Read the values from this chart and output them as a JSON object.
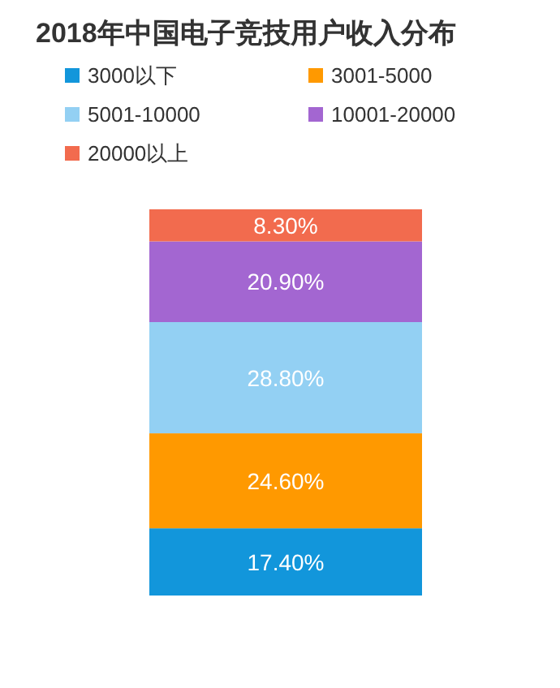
{
  "chart_data": {
    "type": "bar",
    "title": "2018年中国电子竞技用户收入分布",
    "categories": [
      null
    ],
    "stacked": true,
    "legend": "top",
    "series": [
      {
        "name": "3000以下",
        "color": "#1296db",
        "values": [
          17.4
        ],
        "value_labels": [
          "17.40%"
        ]
      },
      {
        "name": "3001-5000",
        "color": "#ff9900",
        "values": [
          24.6
        ],
        "value_labels": [
          "24.60%"
        ]
      },
      {
        "name": "5001-10000",
        "color": "#93d0f3",
        "values": [
          28.8
        ],
        "value_labels": [
          "28.80%"
        ]
      },
      {
        "name": "10001-20000",
        "color": "#a366d1",
        "values": [
          20.9
        ],
        "value_labels": [
          "20.90%"
        ]
      },
      {
        "name": "20000以上",
        "color": "#f26b4e",
        "values": [
          8.3
        ],
        "value_labels": [
          "8.30%"
        ]
      }
    ],
    "ylim": [
      0,
      100
    ]
  }
}
